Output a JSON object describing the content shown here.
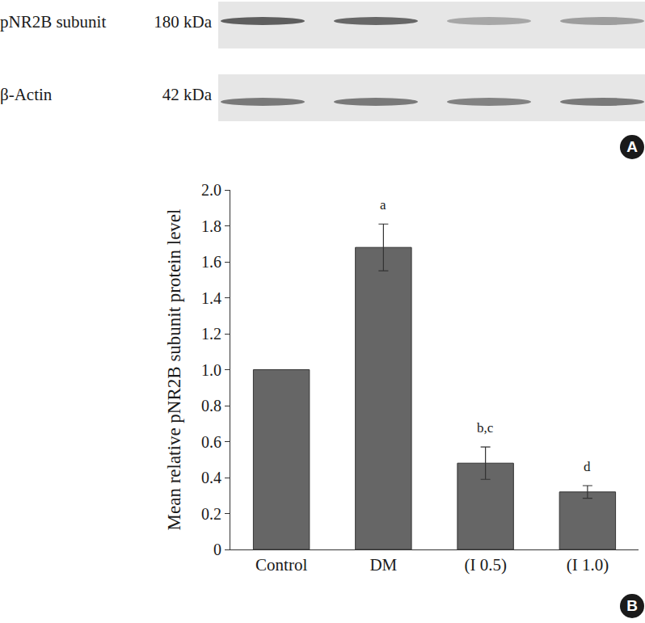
{
  "chart_data": {
    "type": "bar",
    "categories": [
      "Control",
      "DM",
      "(I 0.5)",
      "(I 1.0)"
    ],
    "values": [
      1.0,
      1.68,
      0.48,
      0.32
    ],
    "errors": [
      null,
      0.13,
      0.09,
      0.035
    ],
    "significance": [
      null,
      "a",
      "b,c",
      "d"
    ],
    "y_label": "Mean relative pNR2B subunit protein level",
    "ylim": [
      0,
      2.0
    ],
    "yticks": [
      0,
      0.2,
      0.4,
      0.6,
      0.8,
      {
        "value": 1,
        "label": "1.0"
      },
      1.2,
      1.4,
      1.6,
      1.8,
      {
        "value": 2,
        "label": "2.0"
      }
    ],
    "color": "#666666",
    "grid": false
  },
  "blot": {
    "rows": [
      {
        "label": "pNR2B subunit",
        "size": "180 kDa"
      },
      {
        "label": "β-Actin",
        "size": "42 kDa"
      }
    ]
  },
  "panels": [
    "A",
    "B"
  ]
}
